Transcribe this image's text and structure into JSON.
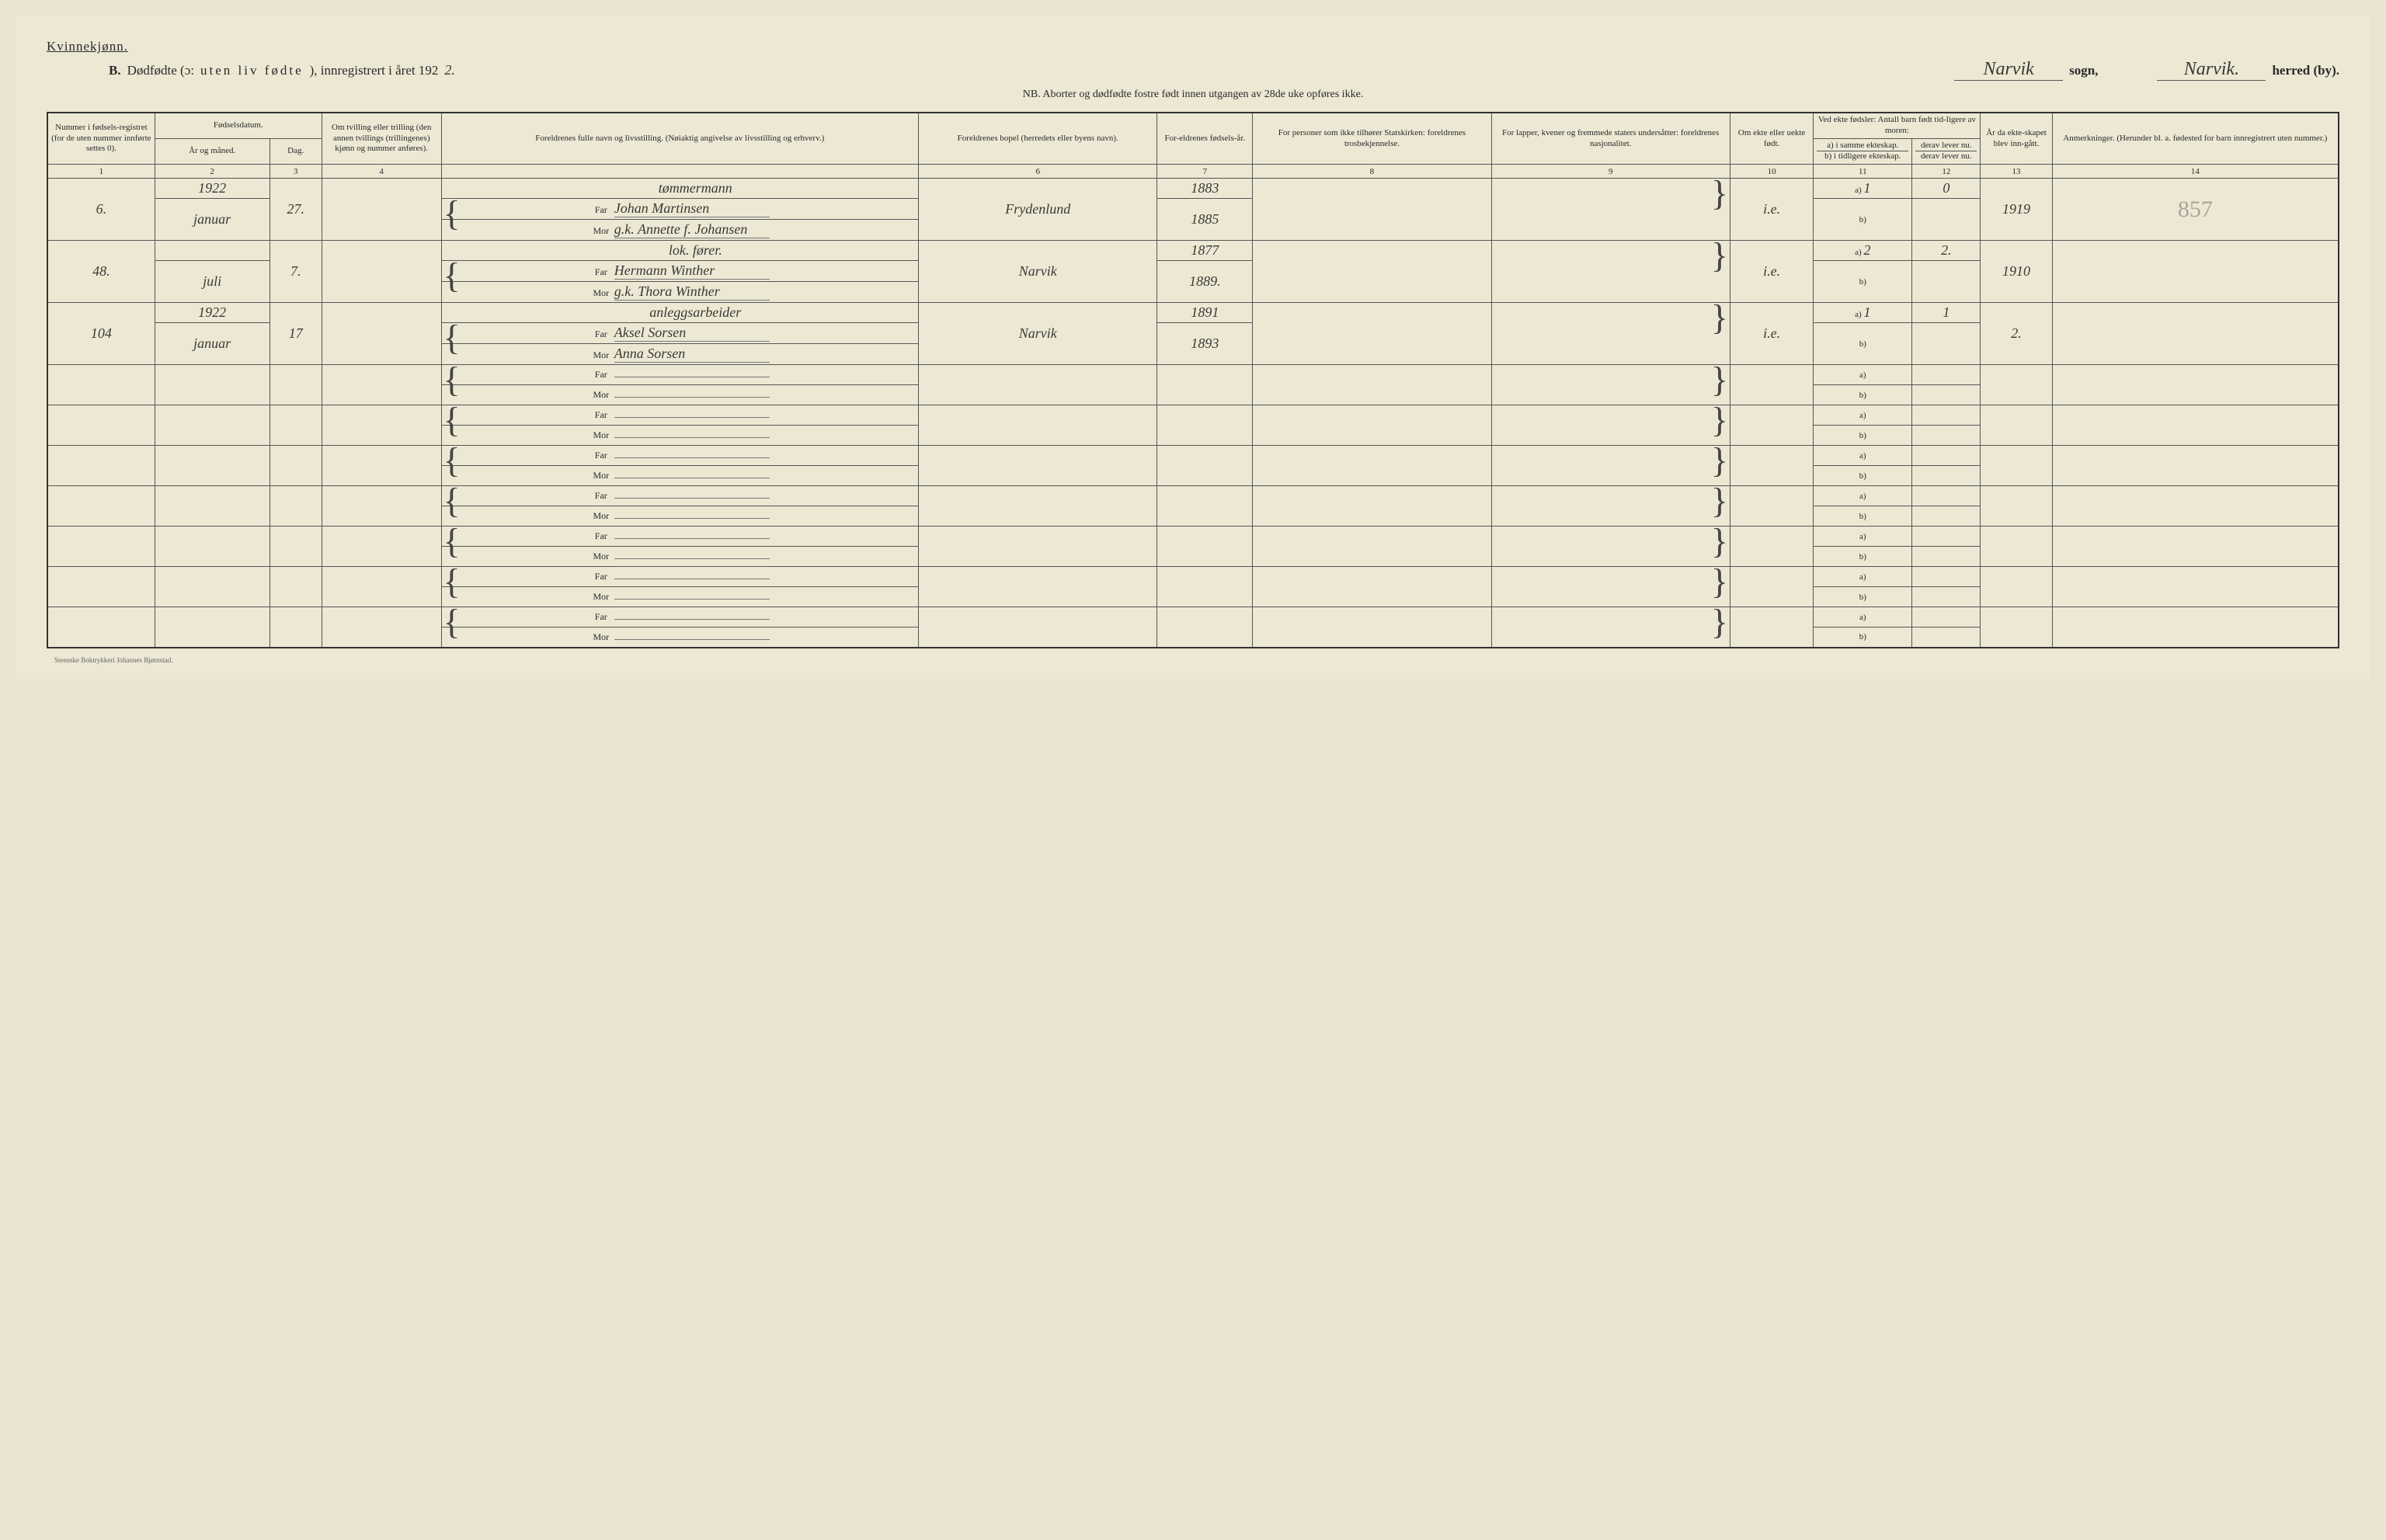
{
  "header": {
    "gender_label": "Kvinnekjønn.",
    "section_letter": "B.",
    "title_part1": "Dødfødte (ɔ:",
    "title_spaced": "uten liv fødte",
    "title_part2": "), innregistrert i året 192",
    "year_suffix": "2.",
    "sogn_value": "Narvik",
    "sogn_label": "sogn,",
    "herred_value": "Narvik.",
    "herred_label": "herred (by).",
    "nb_line": "NB. Aborter og dødfødte fostre født innen utgangen av 28de uke opføres ikke."
  },
  "columns": {
    "c1": "Nummer i fødsels-registret (for de uten nummer innførte settes 0).",
    "c2_top": "Fødselsdatum.",
    "c2a": "År og måned.",
    "c2b": "Dag.",
    "c4": "Om tvilling eller trilling (den annen tvillings (trillingenes) kjønn og nummer anføres).",
    "c5": "Foreldrenes fulle navn og livsstilling. (Nøiaktig angivelse av livsstilling og erhverv.)",
    "c6": "Foreldrenes bopel (herredets eller byens navn).",
    "c7": "For-eldrenes fødsels-år.",
    "c8": "For personer som ikke tilhører Statskirken: foreldrenes trosbekjennelse.",
    "c9": "For lapper, kvener og fremmede staters undersåtter: foreldrenes nasjonalitet.",
    "c10": "Om ekte eller uekte født.",
    "c11_top": "Ved ekte fødsler: Antall barn født tid-ligere av moren:",
    "c11a": "a) i samme ekteskap.",
    "c11b": "b) i tidligere ekteskap.",
    "c12a": "derav lever nu.",
    "c12b": "derav lever nu.",
    "c13": "År da ekte-skapet blev inn-gått.",
    "c14": "Anmerkninger. (Herunder bl. a. fødested for barn innregistrert uten nummer.)",
    "nums": [
      "1",
      "2",
      "3",
      "4",
      "",
      "6",
      "7",
      "8",
      "9",
      "10",
      "11",
      "12",
      "13",
      "14"
    ]
  },
  "labels": {
    "far": "Far",
    "mor": "Mor",
    "a": "a)",
    "b": "b)"
  },
  "entries": [
    {
      "num": "6.",
      "year": "1922",
      "month": "januar",
      "day": "27.",
      "occupation": "tømmermann",
      "far": "Johan Martinsen",
      "mor": "g.k. Annette f. Johansen",
      "bopel": "Frydenlund",
      "far_year": "1883",
      "mor_year": "1885",
      "ekte": "i.e.",
      "a_val": "1",
      "a_lever": "0",
      "ekteskap_aar": "1919",
      "anm": "857"
    },
    {
      "num": "48.",
      "year": "",
      "month": "juli",
      "day": "7.",
      "occupation": "lok. fører.",
      "far": "Hermann Winther",
      "mor": "g.k. Thora Winther",
      "bopel": "Narvik",
      "far_year": "1877",
      "mor_year": "1889.",
      "ekte": "i.e.",
      "a_val": "2",
      "a_lever": "2.",
      "ekteskap_aar": "1910",
      "anm": ""
    },
    {
      "num": "104",
      "year": "1922",
      "month": "januar",
      "day": "17",
      "occupation": "anleggsarbeider",
      "far": "Aksel Sorsen",
      "mor": "Anna Sorsen",
      "bopel": "Narvik",
      "far_year": "1891",
      "mor_year": "1893",
      "ekte": "i.e.",
      "a_val": "1",
      "a_lever": "1",
      "ekteskap_aar": "2.",
      "anm": ""
    }
  ],
  "empty_rows": 7,
  "footer": "Steenske Boktrykkeri Johannes Bjørnstad."
}
